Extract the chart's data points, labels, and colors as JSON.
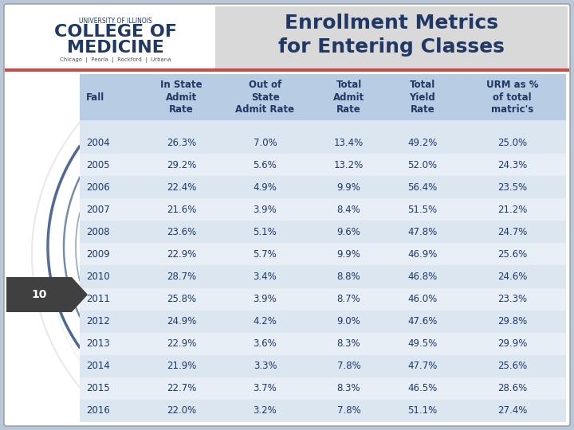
{
  "title_line1": "Enrollment Metrics",
  "title_line2": "for Entering Classes",
  "header": [
    "Fall",
    "In State\nAdmit\nRate",
    "Out of\nState\nAdmit Rate",
    "Total\nAdmit\nRate",
    "Total\nYield\nRate",
    "URM as %\nof total\nmatric's"
  ],
  "rows": [
    [
      "2004",
      "26.3%",
      "7.0%",
      "13.4%",
      "49.2%",
      "25.0%"
    ],
    [
      "2005",
      "29.2%",
      "5.6%",
      "13.2%",
      "52.0%",
      "24.3%"
    ],
    [
      "2006",
      "22.4%",
      "4.9%",
      "9.9%",
      "56.4%",
      "23.5%"
    ],
    [
      "2007",
      "21.6%",
      "3.9%",
      "8.4%",
      "51.5%",
      "21.2%"
    ],
    [
      "2008",
      "23.6%",
      "5.1%",
      "9.6%",
      "47.8%",
      "24.7%"
    ],
    [
      "2009",
      "22.9%",
      "5.7%",
      "9.9%",
      "46.9%",
      "25.6%"
    ],
    [
      "2010",
      "28.7%",
      "3.4%",
      "8.8%",
      "46.8%",
      "24.6%"
    ],
    [
      "2011",
      "25.8%",
      "3.9%",
      "8.7%",
      "46.0%",
      "23.3%"
    ],
    [
      "2012",
      "24.9%",
      "4.2%",
      "9.0%",
      "47.6%",
      "29.8%"
    ],
    [
      "2013",
      "22.9%",
      "3.6%",
      "8.3%",
      "49.5%",
      "29.9%"
    ],
    [
      "2014",
      "21.9%",
      "3.3%",
      "7.8%",
      "47.7%",
      "25.6%"
    ],
    [
      "2015",
      "22.7%",
      "3.7%",
      "8.3%",
      "46.5%",
      "28.6%"
    ],
    [
      "2016",
      "22.0%",
      "3.2%",
      "7.8%",
      "51.1%",
      "27.4%"
    ]
  ],
  "page_number": "10",
  "header_bg": "#b8cce4",
  "title_bg": "#d9d9d9",
  "title_color": "#1f3864",
  "table_text_color": "#1f3864",
  "accent_color": "#c0504d",
  "slide_bg": "#b8c8d8",
  "row_colors": [
    "#dce6f1",
    "#e8eef5"
  ],
  "curve_color": "#2e4e7e",
  "arrow_color": "#404040"
}
